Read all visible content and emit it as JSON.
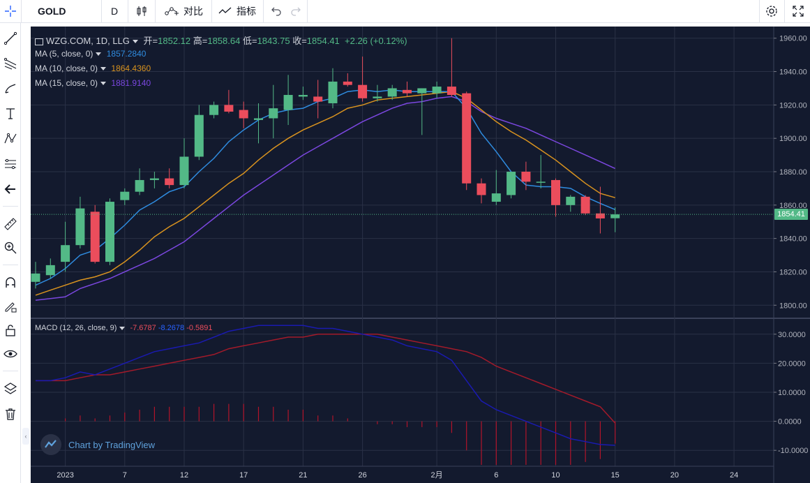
{
  "toolbar": {
    "symbol": "GOLD",
    "interval": "D",
    "compare_label": "对比",
    "indicators_label": "指标"
  },
  "legend": {
    "title": "WZG.COM, 1D, LLG",
    "open_label": "开=",
    "open": "1852.12",
    "high_label": "高=",
    "high": "1858.64",
    "low_label": "低=",
    "low": "1843.75",
    "close_label": "收=",
    "close": "1854.41",
    "change": "+2.26 (+0.12%)",
    "ma5_label": "MA (5, close, 0)",
    "ma5_value": "1857.2840",
    "ma10_label": "MA (10, close, 0)",
    "ma10_value": "1864.4360",
    "ma15_label": "MA (15, close, 0)",
    "ma15_value": "1881.9140",
    "macd_label": "MACD (12, 26, close, 9)",
    "macd_hist": "-7.6787",
    "macd_line": "-8.2678",
    "macd_signal": "-0.5891",
    "price_tag": "1854.41"
  },
  "watermark": "Chart by TradingView",
  "colors": {
    "up": "#53b987",
    "down": "#eb4d5c",
    "ma5": "#2f8ce0",
    "ma10": "#d9931f",
    "ma15": "#7b47e0",
    "macd": "#1a1ab0",
    "signal": "#a31a2a",
    "hist": "#b2142a",
    "bg": "#131a2e",
    "grid": "#2a3146"
  },
  "chart_data": [
    {
      "type": "candlestick",
      "ylim": [
        1793,
        1967
      ],
      "y_ticks": [
        1800,
        1820,
        1840,
        1860,
        1880,
        1900,
        1920,
        1940,
        1960
      ],
      "x_ticks": [
        {
          "i": 2,
          "label": "2023"
        },
        {
          "i": 6,
          "label": "7"
        },
        {
          "i": 10,
          "label": "12"
        },
        {
          "i": 14,
          "label": "17"
        },
        {
          "i": 18,
          "label": "21"
        },
        {
          "i": 22,
          "label": "26"
        },
        {
          "i": 27,
          "label": "2月"
        },
        {
          "i": 31,
          "label": "6"
        },
        {
          "i": 35,
          "label": "10"
        },
        {
          "i": 39,
          "label": "15"
        },
        {
          "i": 43,
          "label": "20"
        },
        {
          "i": 47,
          "label": "24"
        }
      ],
      "candles": [
        {
          "o": 1814,
          "h": 1826,
          "l": 1810,
          "c": 1819
        },
        {
          "o": 1818,
          "h": 1828,
          "l": 1816,
          "c": 1824
        },
        {
          "o": 1826,
          "h": 1850,
          "l": 1820,
          "c": 1836
        },
        {
          "o": 1836,
          "h": 1865,
          "l": 1834,
          "c": 1858
        },
        {
          "o": 1856,
          "h": 1860,
          "l": 1825,
          "c": 1826
        },
        {
          "o": 1826,
          "h": 1864,
          "l": 1824,
          "c": 1862
        },
        {
          "o": 1863,
          "h": 1870,
          "l": 1860,
          "c": 1868
        },
        {
          "o": 1868,
          "h": 1882,
          "l": 1866,
          "c": 1875
        },
        {
          "o": 1875,
          "h": 1880,
          "l": 1870,
          "c": 1876
        },
        {
          "o": 1876,
          "h": 1882,
          "l": 1870,
          "c": 1872
        },
        {
          "o": 1872,
          "h": 1900,
          "l": 1870,
          "c": 1889
        },
        {
          "o": 1889,
          "h": 1920,
          "l": 1887,
          "c": 1914
        },
        {
          "o": 1914,
          "h": 1922,
          "l": 1912,
          "c": 1920
        },
        {
          "o": 1920,
          "h": 1929,
          "l": 1915,
          "c": 1916
        },
        {
          "o": 1917,
          "h": 1922,
          "l": 1906,
          "c": 1912
        },
        {
          "o": 1911,
          "h": 1921,
          "l": 1897,
          "c": 1912
        },
        {
          "o": 1912,
          "h": 1932,
          "l": 1900,
          "c": 1918
        },
        {
          "o": 1917,
          "h": 1938,
          "l": 1908,
          "c": 1926
        },
        {
          "o": 1925,
          "h": 1931,
          "l": 1923,
          "c": 1926
        },
        {
          "o": 1925,
          "h": 1935,
          "l": 1912,
          "c": 1922
        },
        {
          "o": 1921,
          "h": 1942,
          "l": 1918,
          "c": 1934
        },
        {
          "o": 1934,
          "h": 1939,
          "l": 1931,
          "c": 1932
        },
        {
          "o": 1932,
          "h": 1949,
          "l": 1922,
          "c": 1924
        },
        {
          "o": 1924,
          "h": 1932,
          "l": 1922,
          "c": 1925
        },
        {
          "o": 1925,
          "h": 1932,
          "l": 1923,
          "c": 1930
        },
        {
          "o": 1929,
          "h": 1934,
          "l": 1925,
          "c": 1927
        },
        {
          "o": 1927,
          "h": 1930,
          "l": 1902,
          "c": 1930
        },
        {
          "o": 1927,
          "h": 1934,
          "l": 1924,
          "c": 1931
        },
        {
          "o": 1931,
          "h": 1960,
          "l": 1925,
          "c": 1926
        },
        {
          "o": 1927,
          "h": 1928,
          "l": 1869,
          "c": 1873
        },
        {
          "o": 1873,
          "h": 1876,
          "l": 1861,
          "c": 1866
        },
        {
          "o": 1862,
          "h": 1881,
          "l": 1860,
          "c": 1867
        },
        {
          "o": 1866,
          "h": 1880,
          "l": 1864,
          "c": 1880
        },
        {
          "o": 1880,
          "h": 1886,
          "l": 1869,
          "c": 1874
        },
        {
          "o": 1874,
          "h": 1890,
          "l": 1870,
          "c": 1874
        },
        {
          "o": 1875,
          "h": 1876,
          "l": 1853,
          "c": 1860
        },
        {
          "o": 1860,
          "h": 1866,
          "l": 1856,
          "c": 1865
        },
        {
          "o": 1865,
          "h": 1866,
          "l": 1854,
          "c": 1855
        },
        {
          "o": 1855,
          "h": 1871,
          "l": 1843,
          "c": 1852
        },
        {
          "o": 1852.12,
          "h": 1858.64,
          "l": 1843.75,
          "c": 1854.41
        }
      ],
      "ma5": [
        1812,
        1816,
        1822,
        1830,
        1833,
        1840,
        1848,
        1857,
        1862,
        1868,
        1871,
        1880,
        1888,
        1898,
        1905,
        1911,
        1915,
        1917,
        1918,
        1922,
        1924,
        1928,
        1929,
        1928,
        1929,
        1928,
        1928,
        1928,
        1928,
        1918,
        1903,
        1892,
        1880,
        1872,
        1871,
        1871,
        1870,
        1865,
        1861,
        1857.28
      ],
      "ma10": [
        1806,
        1809,
        1812,
        1815,
        1817,
        1820,
        1826,
        1833,
        1841,
        1847,
        1852,
        1859,
        1866,
        1873,
        1879,
        1887,
        1894,
        1900,
        1905,
        1909,
        1913,
        1918,
        1920,
        1923,
        1924,
        1925,
        1926,
        1927,
        1928,
        1924,
        1917,
        1910,
        1904,
        1899,
        1893,
        1887,
        1880,
        1873,
        1867,
        1864.44
      ],
      "ma15": [
        1803,
        1804,
        1805,
        1810,
        1813,
        1816,
        1820,
        1824,
        1828,
        1833,
        1838,
        1845,
        1852,
        1859,
        1866,
        1872,
        1878,
        1884,
        1890,
        1895,
        1900,
        1905,
        1910,
        1914,
        1918,
        1921,
        1922,
        1924,
        1925,
        1922,
        1916,
        1912,
        1909,
        1906,
        1902,
        1898,
        1894,
        1890,
        1886,
        1881.91
      ]
    },
    {
      "type": "macd",
      "ylim": [
        -15,
        35
      ],
      "y_ticks": [
        -10,
        0,
        10,
        20,
        30
      ],
      "macd": [
        14,
        14,
        15,
        17,
        16,
        18,
        20,
        22,
        24,
        25,
        26,
        27,
        29,
        31,
        32,
        33,
        33,
        33,
        33,
        32,
        32,
        31,
        30,
        29,
        28,
        26,
        25,
        24,
        21,
        14,
        7,
        4,
        2,
        0,
        -2,
        -4,
        -6,
        -7,
        -8,
        -8.27
      ],
      "signal": [
        14,
        14,
        14,
        15,
        16,
        16,
        17,
        18,
        19,
        20,
        21,
        22,
        23,
        25,
        26,
        27,
        28,
        29,
        29,
        30,
        30,
        30,
        30,
        30,
        29,
        28,
        27,
        26,
        25,
        24,
        22,
        19,
        17,
        15,
        13,
        11,
        9,
        7,
        5,
        -0.59
      ],
      "hist": [
        0,
        0,
        1,
        2,
        1,
        2,
        3,
        4,
        5,
        5,
        5,
        5,
        6,
        6,
        6,
        5,
        5,
        4,
        4,
        2,
        2,
        1,
        0,
        -1,
        -1,
        -2,
        -2,
        -2,
        -4,
        -10,
        -15,
        -15,
        -15,
        -15,
        -15,
        -15,
        -15,
        -14,
        -13,
        -7.68
      ]
    }
  ]
}
